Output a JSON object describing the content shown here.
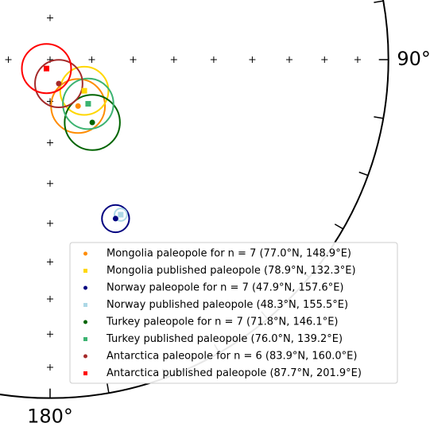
{
  "chart_data": {
    "type": "pole_map",
    "lon_labels": [
      {
        "value": 90,
        "label": "90°"
      },
      {
        "value": 180,
        "label": "180°"
      }
    ],
    "legend": "lower right",
    "series": [
      {
        "name": "Mongolia paleopole for n = 7 (77.0°N, 148.9°E)",
        "color": "#ff8c00",
        "marker": "circle",
        "lat": 77.0,
        "lon": 148.9,
        "a95": 6.5
      },
      {
        "name": "Mongolia published paleopole (78.9°N, 132.3°E)",
        "color": "#ffd700",
        "marker": "square",
        "lat": 78.9,
        "lon": 132.3,
        "a95": 5.8
      },
      {
        "name": "Norway paleopole for n = 7 (47.9°N, 157.6°E)",
        "color": "#000080",
        "marker": "circle",
        "lat": 47.9,
        "lon": 157.6,
        "a95": 3.5
      },
      {
        "name": "Norway published paleopole (48.3°N, 155.5°E)",
        "color": "#add8e6",
        "marker": "square",
        "lat": 48.3,
        "lon": 155.5,
        "a95": 1.6
      },
      {
        "name": "Turkey paleopole for n = 7 (71.8°N, 146.1°E)",
        "color": "#006400",
        "marker": "circle",
        "lat": 71.8,
        "lon": 146.1,
        "a95": 6.7
      },
      {
        "name": "Turkey published paleopole (76.0°N, 139.2°E)",
        "color": "#3cb371",
        "marker": "square",
        "lat": 76.0,
        "lon": 139.2,
        "a95": 6.1
      },
      {
        "name": "Antarctica paleopole for n = 6 (83.9°N, 160.0°E)",
        "color": "#a52a2a",
        "marker": "circle",
        "lat": 83.9,
        "lon": 160.0,
        "a95": 5.7
      },
      {
        "name": "Antarctica published paleopole (87.7°N, 201.9°E)",
        "color": "#ff0000",
        "marker": "square",
        "lat": 87.7,
        "lon": 201.9,
        "a95": 5.9
      }
    ]
  }
}
